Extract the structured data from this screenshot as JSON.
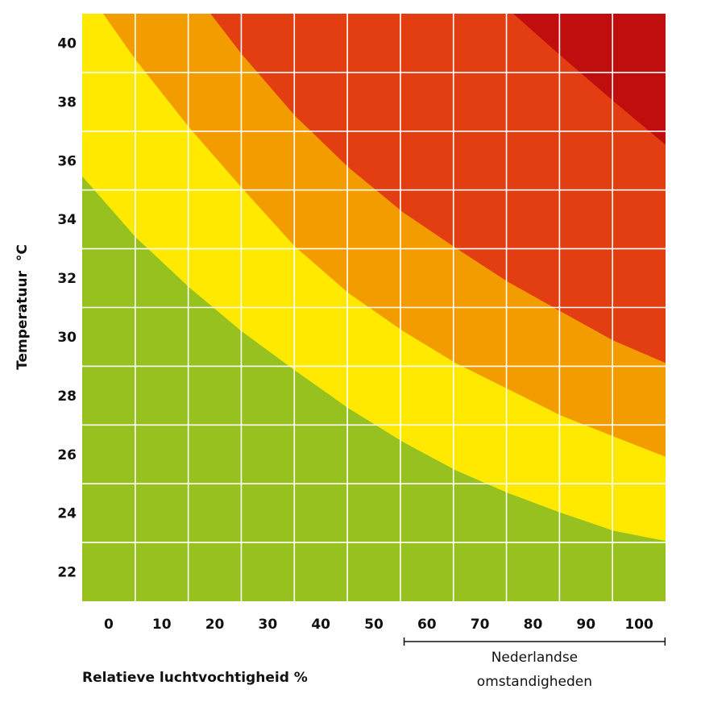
{
  "chart_data": {
    "type": "area",
    "title": "",
    "xlabel": "Relatieve luchtvochtigheid %",
    "ylabel": "Temperatuur  °C",
    "xlim": [
      -5,
      105
    ],
    "ylim": [
      21,
      41
    ],
    "x_ticks": [
      0,
      10,
      20,
      30,
      40,
      50,
      60,
      70,
      80,
      90,
      100
    ],
    "y_ticks": [
      22,
      24,
      26,
      28,
      30,
      32,
      34,
      36,
      38,
      40
    ],
    "grid": true,
    "zones": [
      {
        "name": "green",
        "color": "#96c11f"
      },
      {
        "name": "yellow",
        "color": "#ffe900"
      },
      {
        "name": "orange",
        "color": "#f39c00"
      },
      {
        "name": "red",
        "color": "#e33d12"
      },
      {
        "name": "dark-red",
        "color": "#c00d0d"
      }
    ],
    "boundaries": [
      {
        "name": "green-yellow",
        "points": [
          [
            -5,
            35.47
          ],
          [
            5,
            33.41
          ],
          [
            15.2,
            31.68
          ],
          [
            25,
            30.2
          ],
          [
            35.1,
            28.86
          ],
          [
            45.2,
            27.57
          ],
          [
            55.5,
            26.42
          ],
          [
            65.4,
            25.46
          ],
          [
            75.2,
            24.69
          ],
          [
            85.3,
            24.01
          ],
          [
            95.2,
            23.4
          ],
          [
            105,
            23.05
          ]
        ]
      },
      {
        "name": "yellow-orange",
        "points": [
          [
            -1.05,
            41
          ],
          [
            5,
            39.45
          ],
          [
            15.2,
            37.12
          ],
          [
            25,
            35.09
          ],
          [
            35.1,
            33.08
          ],
          [
            45.2,
            31.49
          ],
          [
            55.5,
            30.2
          ],
          [
            65.4,
            29.11
          ],
          [
            75.2,
            28.23
          ],
          [
            85.3,
            27.32
          ],
          [
            95.2,
            26.61
          ],
          [
            105,
            25.92
          ]
        ]
      },
      {
        "name": "orange-red",
        "points": [
          [
            19.2,
            41
          ],
          [
            25,
            39.64
          ],
          [
            35.1,
            37.53
          ],
          [
            45.2,
            35.77
          ],
          [
            55.5,
            34.24
          ],
          [
            65.4,
            33.03
          ],
          [
            75.2,
            31.88
          ],
          [
            85.3,
            30.86
          ],
          [
            95.2,
            29.87
          ],
          [
            105,
            29.11
          ]
        ]
      },
      {
        "name": "red-darkred",
        "points": [
          [
            76.3,
            41
          ],
          [
            85.3,
            39.56
          ],
          [
            95.2,
            38.02
          ],
          [
            105,
            36.54
          ]
        ]
      }
    ],
    "annotation": {
      "range": [
        60,
        100
      ],
      "line1": "Nederlandse",
      "line2": "omstandigheden"
    }
  }
}
